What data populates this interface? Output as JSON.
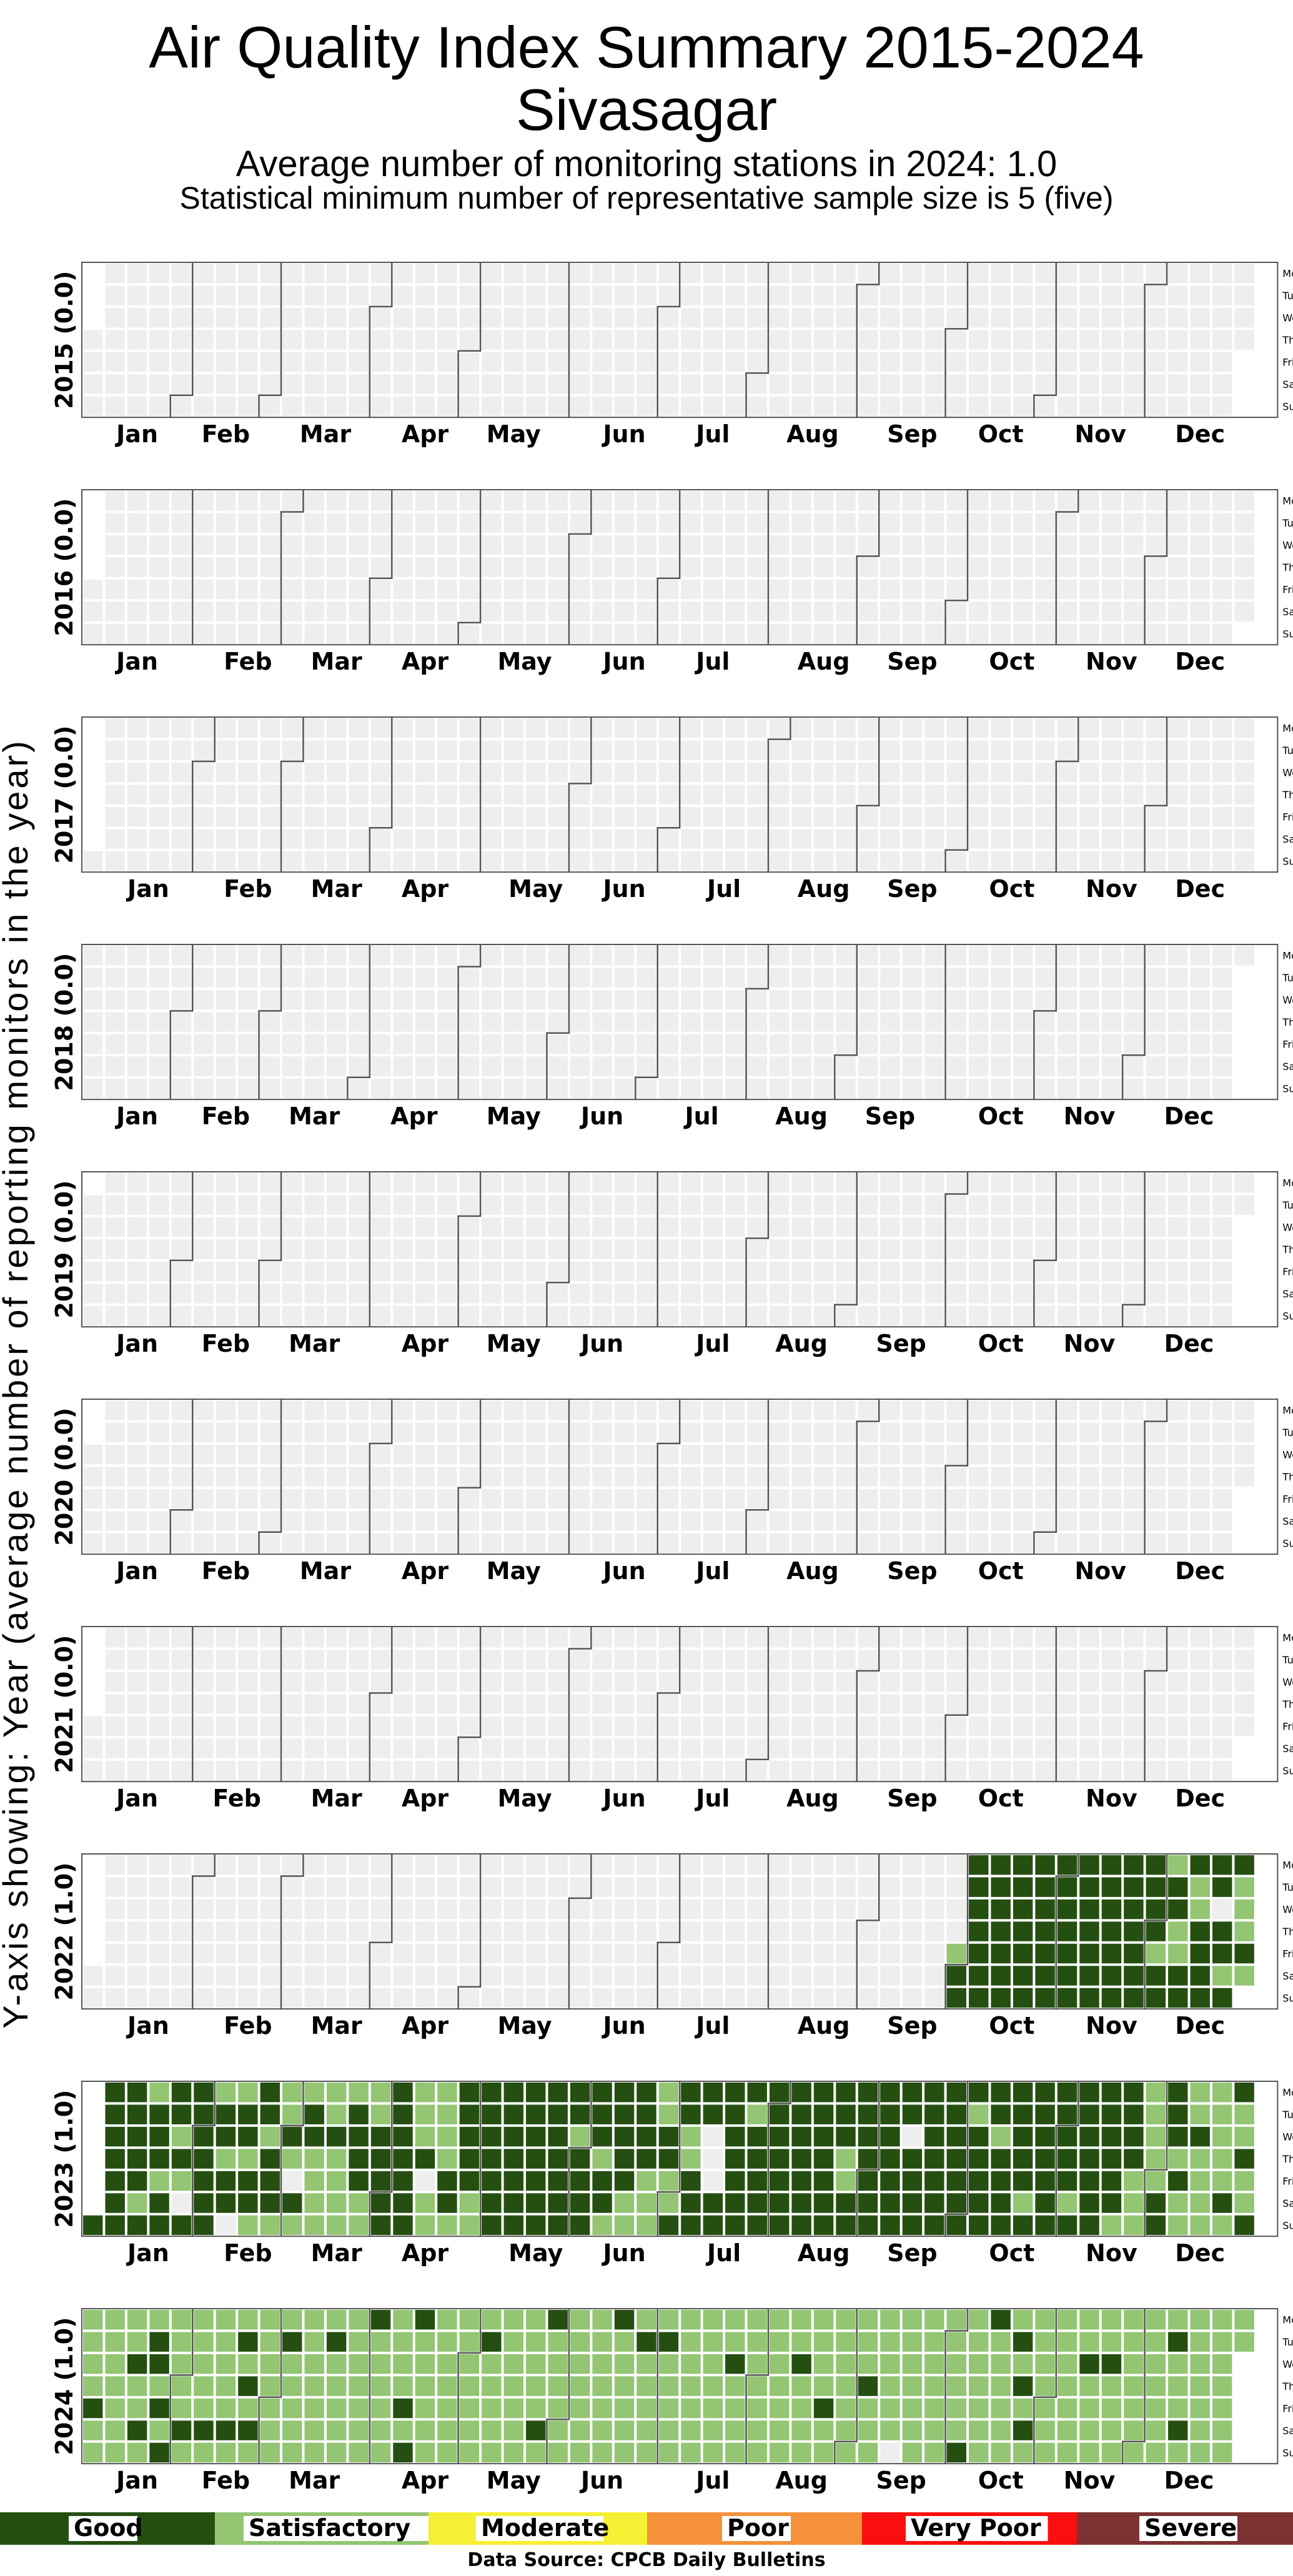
{
  "title": {
    "line1": "Air Quality Index Summary 2015-2024",
    "line2": "Sivasagar",
    "subtitle1": "Average number of monitoring stations in 2024: 1.0",
    "subtitle2": "Statistical minimum number of representative sample size is 5 (five)"
  },
  "y_axis_title": "Y-axis showing: Year (average number of reporting monitors in the year)",
  "source": "Data Source: CPCB Daily Bulletins",
  "colors": {
    "empty": "#eeeeee",
    "Good": "#254f11",
    "Satisfactory": "#93c572",
    "Moderate": "#f5f033",
    "Poor": "#f4913a",
    "Very Poor": "#f90f0f",
    "Severe": "#7c3133",
    "month_border": "#555555"
  },
  "chart_data": {
    "type": "heatmap",
    "layout": "calendar",
    "weekday_labels": [
      "Mon",
      "Tue",
      "Wed",
      "Thu",
      "Fri",
      "Sat",
      "Sun"
    ],
    "month_labels": [
      "Jan",
      "Feb",
      "Mar",
      "Apr",
      "May",
      "Jun",
      "Jul",
      "Aug",
      "Sep",
      "Oct",
      "Nov",
      "Dec"
    ],
    "legend": [
      "Good",
      "Satisfactory",
      "Moderate",
      "Poor",
      "Very Poor",
      "Severe"
    ],
    "years": [
      {
        "year": 2015,
        "label": "2015 (0.0)",
        "monitors": 0.0,
        "start": "2015-01-01",
        "end": "2015-12-31",
        "days": ""
      },
      {
        "year": 2016,
        "label": "2016 (0.0)",
        "monitors": 0.0,
        "start": "2016-01-01",
        "end": "2016-12-31",
        "days": ""
      },
      {
        "year": 2017,
        "label": "2017 (0.0)",
        "monitors": 0.0,
        "start": "2017-01-01",
        "end": "2017-12-31",
        "days": ""
      },
      {
        "year": 2018,
        "label": "2018 (0.0)",
        "monitors": 0.0,
        "start": "2018-01-01",
        "end": "2018-12-31",
        "days": ""
      },
      {
        "year": 2019,
        "label": "2019 (0.0)",
        "monitors": 0.0,
        "start": "2019-01-01",
        "end": "2019-12-31",
        "days": ""
      },
      {
        "year": 2020,
        "label": "2020 (0.0)",
        "monitors": 0.0,
        "start": "2020-01-01",
        "end": "2020-12-31",
        "days": ""
      },
      {
        "year": 2021,
        "label": "2021 (0.0)",
        "monitors": 0.0,
        "start": "2021-01-01",
        "end": "2021-12-31",
        "days": ""
      },
      {
        "year": 2022,
        "label": "2022 (1.0)",
        "monitors": 1.0,
        "start": "2022-09-30",
        "end": "2022-12-31",
        "days": "SGGGGGGGGGGGGGGGGGGGGGGGGGGGGGGGGGGGGGGGGGGGGGGGGGGGGGGGGGGGGGGSGGSGGSSGGGSSGGGGGG.GGSGGSSSGSS.GSGSGSSGSGSGSSG"
      },
      {
        "year": 2023,
        "label": "2023 (1.0)",
        "monitors": 1.0,
        "start": "2023-01-01",
        "end": "2023-12-31",
        "days": "GGGGGGGGGGGGGSGSGGGSGGGGSGS.GGGGGGGGSGGSGG.SGGSGGSGGSGGGSSSGS.GSSGGSSSSSSGSSSSSGGGGSSSSGGGGGGGGGGGGSSSG.SSSSSSGGSGGGGGSSGGGGGGGGGGGGGGGGGGGGGGGGGGGGGGSGGGGGGGSGGSGGGGGSSGGGGSSSSSGGSSGGGSSGGGGG...GGGGGGGGGGSGGGGGGGGGGGGGGGGGGGGGGGGGGGGGSSGGGGGGGGGGGGGGGGGG.GGGGGGGGGGGGGGGGGGGSGGGGGGGSGGGGGGGGGSGGGGGGGGGGGGGSGGGGGGGGGGGGGGSGGGGSSSSSSSSGGGGGSGSSSSGSSSSSSSSSGSGSSGSSGSGGSGSSGSSGSSGSSSGGSGGSGGSSS"
      },
      {
        "year": 2024,
        "label": "2024 (1.0)",
        "monitors": 1.0,
        "start": "2024-01-01",
        "end": "2024-12-31",
        "days": "SSSSGSSSSSSSSSSSGSSGSSGGSGSGSSSSSGSSSSSSGSSSSSSGSSGSGSGSSSSSSSSSGSSSSSSSSSSSSSGSSSSSSSSSSSSGSSSSSSSSSSGSGGSSSSSSSSSSSSSSSSSSSSSGSSSSSSSSSSSSSSSSSGSGSSSSSSSSSSSSSSSSSSSSGSSSSSSSGSSSSSSGSSSSSSSSSSSSSSSSSSSSSGSSSSSSSSSSSSSSSSSSSSGSSSSSSSSGSSSSSSSSSSSSGSSSSSSSSS.SSSSSSSSSSSSSSSSSSSSGSSSSSSSGSSSSSSSGSGSGSSSSSSSSSSSSSSSSSGSSSSSSGSSSSSSSSSSSSSSSSSSSGSSSGSSSSSSSSSSSSSSSSSSSSSSSSSSSSS"
      }
    ]
  }
}
